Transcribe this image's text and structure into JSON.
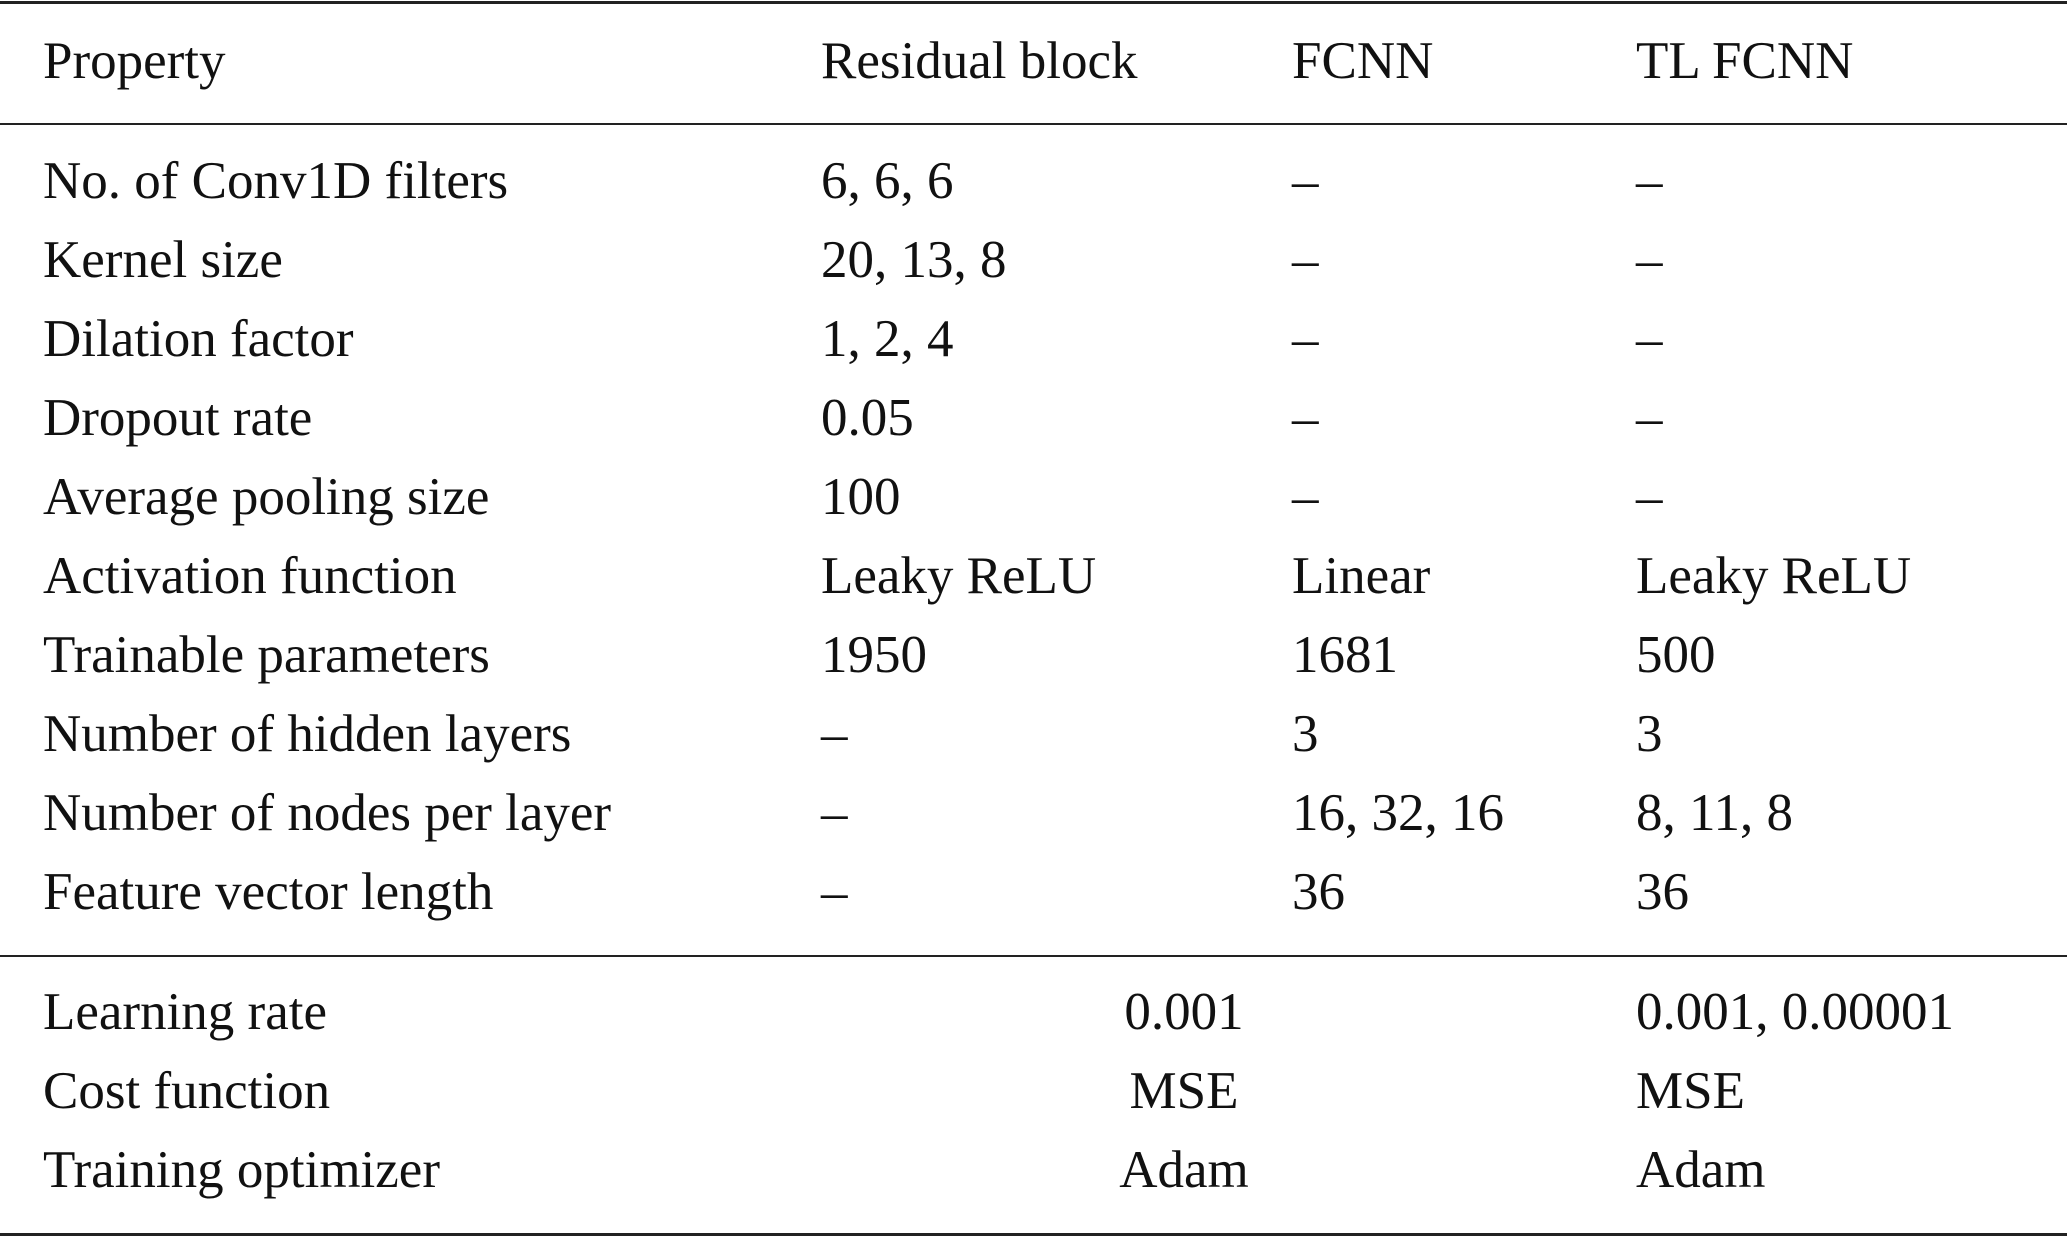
{
  "table": {
    "headers": [
      "Property",
      "Residual block",
      "FCNN",
      "TL FCNN"
    ],
    "rows": [
      [
        "No. of Conv1D filters",
        "6, 6, 6",
        "–",
        "–"
      ],
      [
        "Kernel size",
        "20, 13, 8",
        "–",
        "–"
      ],
      [
        "Dilation factor",
        "1, 2, 4",
        "–",
        "–"
      ],
      [
        "Dropout rate",
        "0.05",
        "–",
        "–"
      ],
      [
        "Average pooling size",
        "100",
        "–",
        "–"
      ],
      [
        "Activation function",
        "Leaky ReLU",
        "Linear",
        "Leaky ReLU"
      ],
      [
        "Trainable parameters",
        "1950",
        "1681",
        "500"
      ],
      [
        "Number of hidden layers",
        "–",
        "3",
        "3"
      ],
      [
        "Number of nodes per layer",
        "–",
        "16, 32, 16",
        "8, 11, 8"
      ],
      [
        "Feature vector length",
        "–",
        "36",
        "36"
      ]
    ],
    "training_rows": [
      [
        "Learning rate",
        "0.001",
        "0.001, 0.00001"
      ],
      [
        "Cost function",
        "MSE",
        "MSE"
      ],
      [
        "Training optimizer",
        "Adam",
        "Adam"
      ]
    ]
  }
}
